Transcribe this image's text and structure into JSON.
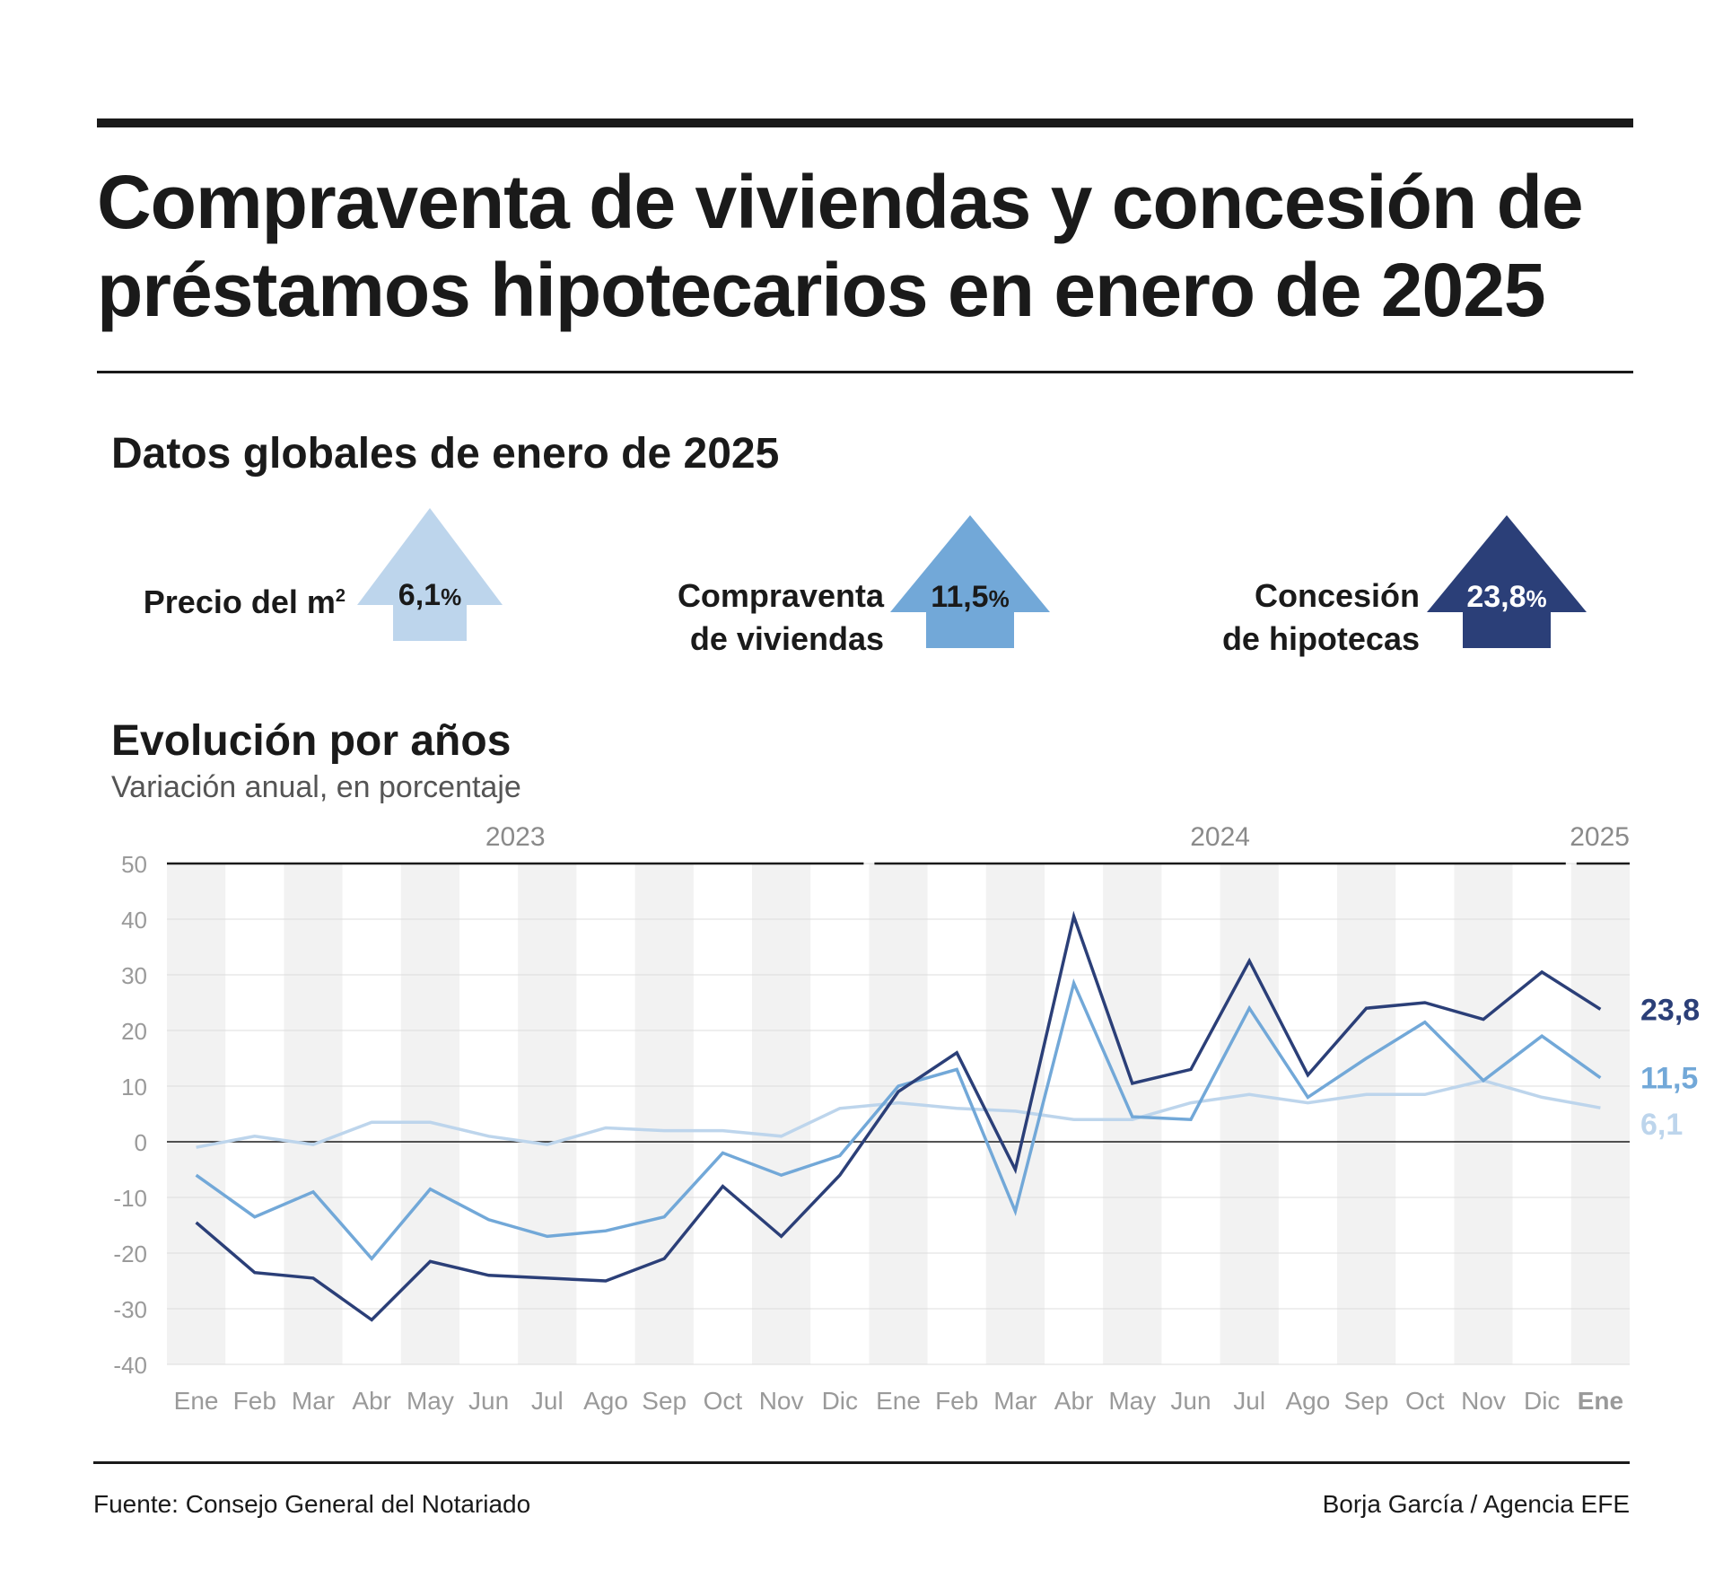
{
  "header": {
    "title": "Compraventa de viviendas y concesión de préstamos hipotecarios en enero de 2025"
  },
  "global": {
    "heading": "Datos globales de enero de 2025",
    "kpis": [
      {
        "label_line1": "Precio del m",
        "label_sup": "2",
        "value": "6,1",
        "unit": "%",
        "color": "#bdd5ec"
      },
      {
        "label_line1": "Compraventa",
        "label_line2": "de viviendas",
        "value": "11,5",
        "unit": "%",
        "color": "#72a8d8"
      },
      {
        "label_line1": "Concesión",
        "label_line2": "de hipotecas",
        "value": "23,8",
        "unit": "%",
        "color": "#2b3f78"
      }
    ]
  },
  "evolution": {
    "heading": "Evolución por años",
    "subtitle": "Variación anual, en porcentaje"
  },
  "chart_data": {
    "type": "line",
    "years": [
      {
        "label": "2023",
        "start": 0,
        "end": 11
      },
      {
        "label": "2024",
        "start": 12,
        "end": 23
      },
      {
        "label": "2025",
        "start": 24,
        "end": 24
      }
    ],
    "categories": [
      "Ene",
      "Feb",
      "Mar",
      "Abr",
      "May",
      "Jun",
      "Jul",
      "Ago",
      "Sep",
      "Oct",
      "Nov",
      "Dic",
      "Ene",
      "Feb",
      "Mar",
      "Abr",
      "May",
      "Jun",
      "Jul",
      "Ago",
      "Sep",
      "Oct",
      "Nov",
      "Dic",
      "Ene"
    ],
    "highlight_last_category": true,
    "ylim": [
      -40,
      50
    ],
    "yticks": [
      50,
      40,
      30,
      20,
      10,
      0,
      -10,
      -20,
      -30,
      -40
    ],
    "series": [
      {
        "key": "precio",
        "color": "#bdd5ec",
        "end_label": "6,1",
        "values": [
          -1,
          1,
          -0.5,
          3.5,
          3.5,
          1,
          -0.5,
          2.5,
          2,
          2,
          1,
          6,
          7,
          6,
          5.5,
          4,
          4,
          7,
          8.5,
          7,
          8.5,
          8.5,
          11,
          8,
          6.1
        ]
      },
      {
        "key": "compraventa",
        "color": "#72a8d8",
        "end_label": "11,5",
        "values": [
          -6,
          -13.5,
          -9,
          -21,
          -8.5,
          -14,
          -17,
          -16,
          -13.5,
          -2,
          -6,
          -2.5,
          10,
          13,
          -12.5,
          28.5,
          4.5,
          4,
          24,
          8,
          15,
          21.5,
          11,
          19,
          11.5
        ]
      },
      {
        "key": "hipotecas",
        "color": "#2b3f78",
        "end_label": "23,8",
        "values": [
          -14.5,
          -23.5,
          -24.5,
          -32,
          -21.5,
          -24,
          -24.5,
          -25,
          -21,
          -8,
          -17,
          -6,
          9,
          16,
          -5,
          40.5,
          10.5,
          13,
          32.5,
          12,
          24,
          25,
          22,
          30.5,
          23.8
        ]
      }
    ],
    "grid": true,
    "alternating_bands": true
  },
  "footer": {
    "source": "Fuente: Consejo General del Notariado",
    "credit": "Borja García / Agencia EFE"
  }
}
